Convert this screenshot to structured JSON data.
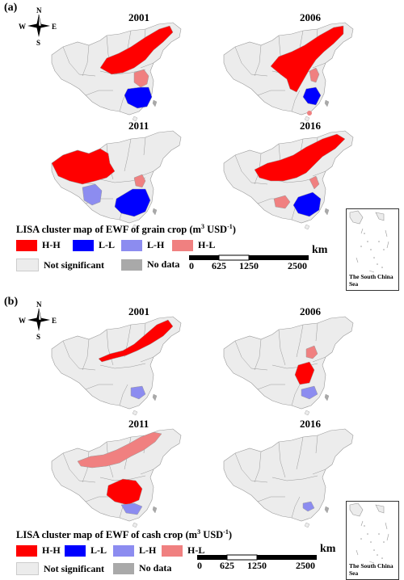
{
  "panels": [
    {
      "label": "(a)",
      "years": [
        "2001",
        "2006",
        "2011",
        "2016"
      ],
      "legend_title": "LISA cluster map of EWF of grain crop",
      "legend_unit": "(m",
      "legend_unit_sup1": "3",
      "legend_unit_mid": " USD",
      "legend_unit_sup2": "-1",
      "legend_unit_end": ")",
      "maps": [
        {
          "year": "2001",
          "hh": true,
          "ll": true,
          "lh": false,
          "hl": true
        },
        {
          "year": "2006",
          "hh": true,
          "ll": true,
          "lh": false,
          "hl": true
        },
        {
          "year": "2011",
          "hh": true,
          "ll": true,
          "lh": true,
          "hl": true
        },
        {
          "year": "2016",
          "hh": true,
          "ll": true,
          "lh": false,
          "hl": true
        }
      ]
    },
    {
      "label": "(b)",
      "years": [
        "2001",
        "2006",
        "2011",
        "2016"
      ],
      "legend_title": "LISA cluster map of EWF of cash crop",
      "legend_unit": "(m",
      "legend_unit_sup1": "3",
      "legend_unit_mid": " USD",
      "legend_unit_sup2": "-1",
      "legend_unit_end": ")"
    }
  ],
  "legend": {
    "hh": "H-H",
    "ll": "L-L",
    "lh": "L-H",
    "hl": "H-L",
    "not_significant": "Not significant",
    "no_data": "No data"
  },
  "colors": {
    "hh": "#ff0000",
    "ll": "#0000ff",
    "lh": "#8c8cf0",
    "hl": "#f08080",
    "not_significant": "#ececec",
    "no_data": "#a9a9a9",
    "border": "#9a9a9a"
  },
  "scale_bar": {
    "ticks": [
      "0",
      "625",
      "1250",
      "2500"
    ],
    "unit": "km"
  },
  "inset_label": "The South China Sea",
  "compass": {
    "n": "N",
    "s": "S",
    "e": "E",
    "w": "W"
  }
}
